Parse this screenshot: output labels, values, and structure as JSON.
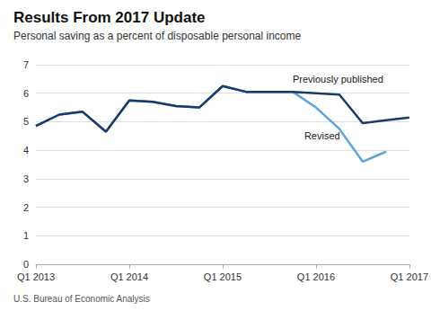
{
  "chart_data": {
    "type": "line",
    "title": "Results From 2017 Update",
    "subtitle": "Personal saving as a percent of disposable personal income",
    "source": "U.S. Bureau of Economic Analysis",
    "categories": [
      "Q1 2013",
      null,
      null,
      null,
      "Q1 2014",
      null,
      null,
      null,
      "Q1 2015",
      null,
      null,
      null,
      "Q1 2016",
      null,
      null,
      null,
      "Q1 2017"
    ],
    "series": [
      {
        "name": "Revised",
        "color": "#5ba3d9",
        "values": [
          4.85,
          5.25,
          5.35,
          4.65,
          5.75,
          5.7,
          5.55,
          5.5,
          6.25,
          6.05,
          6.05,
          6.05,
          5.5,
          4.75,
          3.6,
          3.95,
          null
        ]
      },
      {
        "name": "Previously published",
        "color": "#1a3a6b",
        "values": [
          4.85,
          5.25,
          5.35,
          4.65,
          5.75,
          5.7,
          5.55,
          5.5,
          6.25,
          6.05,
          6.05,
          6.05,
          6.0,
          5.95,
          4.95,
          5.05,
          5.15
        ]
      }
    ],
    "ylim": [
      0,
      7
    ],
    "yticks": [
      0,
      1,
      2,
      3,
      4,
      5,
      6,
      7
    ],
    "grid": true,
    "annotations": [
      {
        "text": "Previously published",
        "x": 11.0,
        "y": 6.5
      },
      {
        "text": "Revised",
        "x": 11.5,
        "y": 4.5
      }
    ]
  }
}
